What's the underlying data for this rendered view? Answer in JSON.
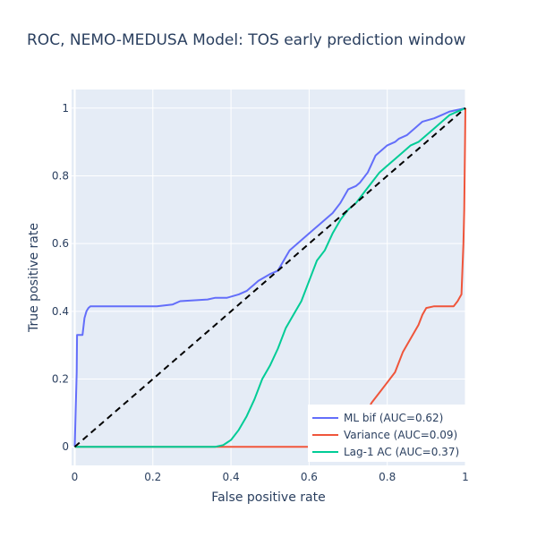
{
  "chart_data": {
    "type": "line",
    "title": "ROC, NEMO-MEDUSA Model: TOS early prediction window",
    "xlabel": "False positive rate",
    "ylabel": "True positive rate",
    "xlim": [
      -0.008,
      1.0
    ],
    "ylim": [
      -0.055,
      1.055
    ],
    "x_ticks": [
      0,
      0.2,
      0.4,
      0.6,
      0.8,
      1
    ],
    "x_tick_labels": [
      "0",
      "0.2",
      "0.4",
      "0.6",
      "0.8",
      "1"
    ],
    "y_ticks": [
      0,
      0.2,
      0.4,
      0.6,
      0.8,
      1
    ],
    "y_tick_labels": [
      "0",
      "0.2",
      "0.4",
      "0.6",
      "0.8",
      "1"
    ],
    "grid": true,
    "legend_position": "bottom-right",
    "colors": {
      "plot_bg": "#e5ecf6",
      "grid": "#ffffff",
      "text": "#2a3f5f"
    },
    "series": [
      {
        "name": "ML bif (AUC=0.62)",
        "color": "#636efa",
        "x": [
          0,
          0.005,
          0.006,
          0.02,
          0.025,
          0.03,
          0.035,
          0.04,
          0.1,
          0.21,
          0.25,
          0.27,
          0.34,
          0.36,
          0.39,
          0.42,
          0.44,
          0.45,
          0.46,
          0.47,
          0.5,
          0.52,
          0.54,
          0.55,
          0.6,
          0.62,
          0.65,
          0.66,
          0.68,
          0.7,
          0.72,
          0.73,
          0.75,
          0.77,
          0.8,
          0.82,
          0.83,
          0.85,
          0.87,
          0.89,
          0.92,
          0.94,
          0.96,
          1
        ],
        "y": [
          0,
          0.22,
          0.33,
          0.33,
          0.38,
          0.4,
          0.41,
          0.415,
          0.415,
          0.415,
          0.42,
          0.43,
          0.435,
          0.44,
          0.44,
          0.45,
          0.46,
          0.47,
          0.48,
          0.49,
          0.51,
          0.52,
          0.56,
          0.58,
          0.63,
          0.65,
          0.68,
          0.69,
          0.72,
          0.76,
          0.77,
          0.78,
          0.81,
          0.86,
          0.89,
          0.9,
          0.91,
          0.92,
          0.94,
          0.96,
          0.97,
          0.98,
          0.99,
          1.0
        ]
      },
      {
        "name": "Variance (AUC=0.09)",
        "color": "#ef553b",
        "x": [
          0,
          0.6,
          0.7,
          0.76,
          0.78,
          0.8,
          0.82,
          0.84,
          0.86,
          0.88,
          0.89,
          0.9,
          0.92,
          0.95,
          0.97,
          0.98,
          0.99,
          0.995,
          0.997,
          0.999,
          1.0
        ],
        "y": [
          0,
          0.0,
          0.0,
          0.13,
          0.16,
          0.19,
          0.22,
          0.28,
          0.32,
          0.36,
          0.39,
          0.41,
          0.415,
          0.415,
          0.415,
          0.43,
          0.45,
          0.6,
          0.7,
          0.9,
          1.0
        ]
      },
      {
        "name": "Lag-1 AC (AUC=0.37)",
        "color": "#00cc96",
        "x": [
          0,
          0.36,
          0.38,
          0.4,
          0.42,
          0.44,
          0.46,
          0.48,
          0.5,
          0.52,
          0.54,
          0.56,
          0.58,
          0.6,
          0.62,
          0.64,
          0.66,
          0.68,
          0.7,
          0.72,
          0.74,
          0.76,
          0.78,
          0.8,
          0.82,
          0.84,
          0.86,
          0.88,
          0.9,
          0.92,
          0.94,
          0.96,
          1.0
        ],
        "y": [
          0,
          0.0,
          0.005,
          0.02,
          0.05,
          0.09,
          0.14,
          0.2,
          0.24,
          0.29,
          0.35,
          0.39,
          0.43,
          0.49,
          0.55,
          0.58,
          0.63,
          0.67,
          0.7,
          0.72,
          0.75,
          0.78,
          0.81,
          0.83,
          0.85,
          0.87,
          0.89,
          0.9,
          0.92,
          0.94,
          0.96,
          0.98,
          1.0
        ]
      },
      {
        "name": "",
        "color": "#000000",
        "dash": "dash",
        "x": [
          0,
          1
        ],
        "y": [
          0,
          1
        ]
      }
    ]
  }
}
